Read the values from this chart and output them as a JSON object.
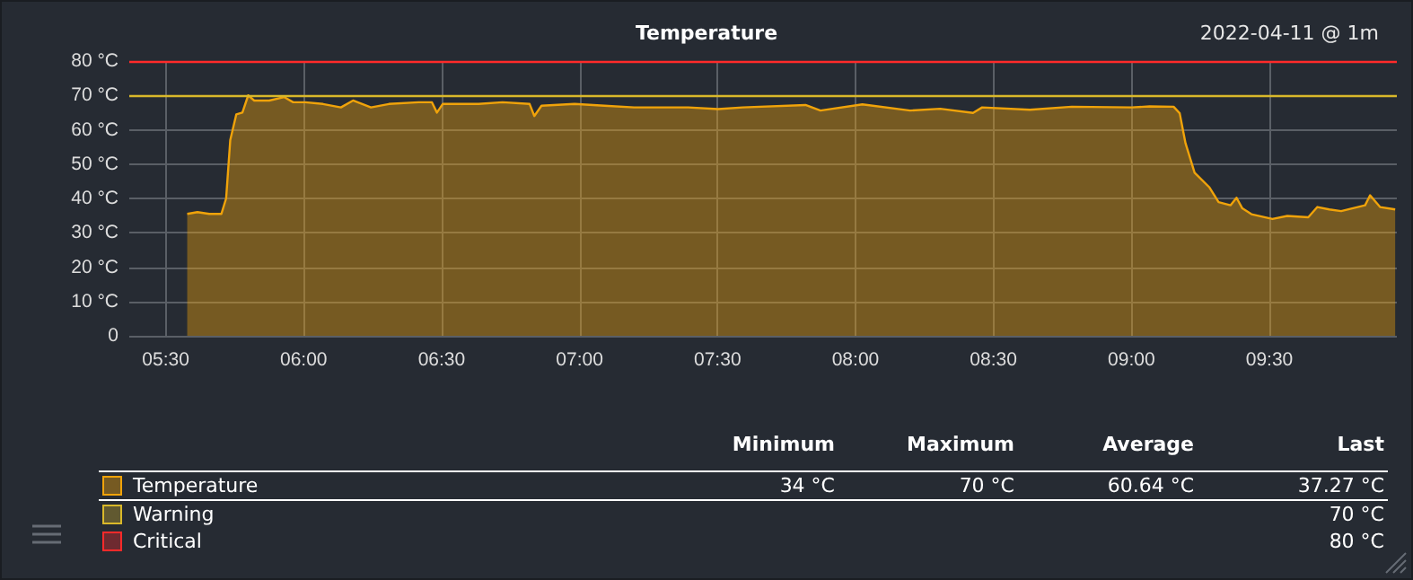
{
  "chart_data": {
    "type": "area",
    "title": "Temperature",
    "subtitle": "2022-04-11 @ 1m",
    "x": [
      5.578,
      5.615,
      5.658,
      5.702,
      5.719,
      5.734,
      5.756,
      5.778,
      5.799,
      5.821,
      5.875,
      5.93,
      5.962,
      6.005,
      6.07,
      6.135,
      6.179,
      6.244,
      6.309,
      6.417,
      6.465,
      6.483,
      6.504,
      6.634,
      6.721,
      6.819,
      6.836,
      6.862,
      6.982,
      7.09,
      7.198,
      7.285,
      7.394,
      7.502,
      7.591,
      7.819,
      7.873,
      8.025,
      8.198,
      8.307,
      8.426,
      8.459,
      8.632,
      8.784,
      9.001,
      9.066,
      9.153,
      9.175,
      9.196,
      9.229,
      9.283,
      9.316,
      9.359,
      9.381,
      9.402,
      9.435,
      9.511,
      9.565,
      9.641,
      9.674,
      9.717,
      9.76,
      9.847,
      9.865,
      9.901,
      9.956
    ],
    "series": [
      {
        "name": "Temperature",
        "color": "#f0a30a",
        "values": [
          35.5,
          36,
          35.5,
          35.5,
          40,
          57,
          64.5,
          65,
          70,
          68.5,
          68.5,
          69.5,
          68,
          68,
          67.5,
          66.5,
          68.5,
          66.5,
          67.5,
          68,
          68,
          65,
          67.5,
          67.5,
          68,
          67.5,
          64,
          67,
          67.5,
          67,
          66.5,
          66.5,
          66.5,
          66,
          66.5,
          67.2,
          65.6,
          67.4,
          65.6,
          66.1,
          64.9,
          66.5,
          65.8,
          66.7,
          66.5,
          66.8,
          66.7,
          64.8,
          56.1,
          47.5,
          43.2,
          38.9,
          38,
          40.2,
          37.1,
          35.4,
          34,
          34.9,
          34.5,
          37.5,
          36.8,
          36.3,
          38,
          40.9,
          37.5,
          36.8
        ]
      }
    ],
    "xlim": [
      5.368,
      9.962
    ],
    "xticks": [
      {
        "value": 5.5,
        "label": "05:30"
      },
      {
        "value": 6,
        "label": "06:00"
      },
      {
        "value": 6.5,
        "label": "06:30"
      },
      {
        "value": 7,
        "label": "07:00"
      },
      {
        "value": 7.5,
        "label": "07:30"
      },
      {
        "value": 8,
        "label": "08:00"
      },
      {
        "value": 8.5,
        "label": "08:30"
      },
      {
        "value": 9,
        "label": "09:00"
      },
      {
        "value": 9.5,
        "label": "09:30"
      }
    ],
    "ylim": [
      0,
      80
    ],
    "yticks": [
      0,
      {
        "value": 10,
        "label": "10 °C"
      },
      {
        "value": 20,
        "label": "20 °C"
      },
      {
        "value": 30,
        "label": "30 °C"
      },
      {
        "value": 40,
        "label": "40 °C"
      },
      {
        "value": 50,
        "label": "50 °C"
      },
      {
        "value": 60,
        "label": "60 °C"
      },
      {
        "value": 70,
        "label": "70 °C"
      },
      {
        "value": 80,
        "label": "80 °C"
      }
    ],
    "ref_lines": [
      {
        "axis": "y",
        "value": 70,
        "label": "Warning",
        "color": "#d9b82a"
      },
      {
        "axis": "y",
        "value": 80,
        "label": "Critical",
        "color": "#ff2a2a"
      }
    ],
    "annotations": [
      "Minimum",
      "Maximum",
      "Average",
      "Last",
      "34 °C",
      "70 °C",
      "60.64 °C",
      "37.27 °C",
      "70 °C",
      "80 °C"
    ],
    "grid": true,
    "legend": "bottom",
    "marker": "none",
    "line_style": "solid"
  }
}
